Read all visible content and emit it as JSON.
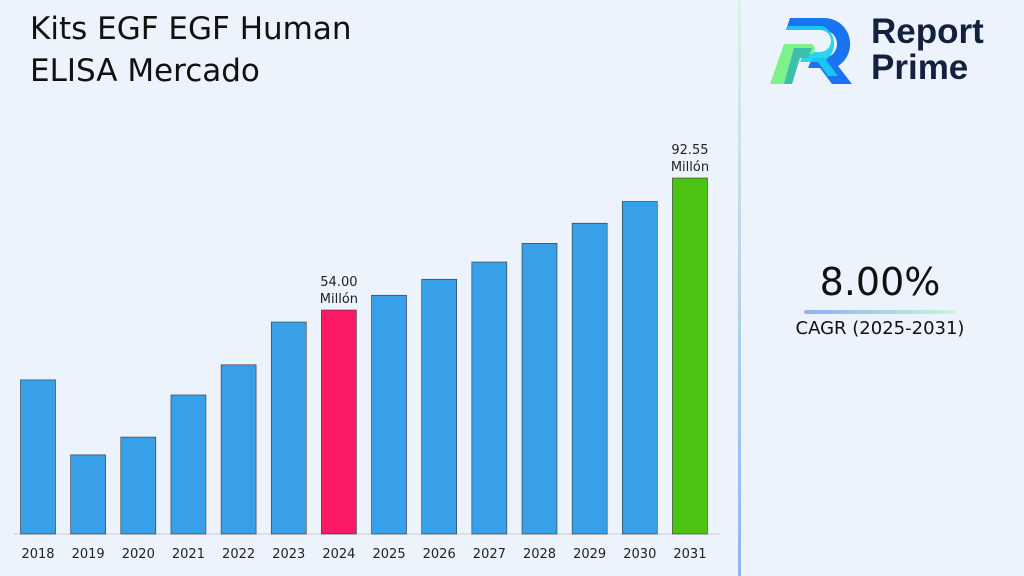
{
  "title": "Kits EGF EGF Human ELISA Mercado",
  "brand": {
    "name_line1": "Report",
    "name_line2": "Prime"
  },
  "cagr": {
    "value": "8.00%",
    "label": "CAGR (2025-2031)"
  },
  "colors": {
    "default_bar": "#38a0e8",
    "highlight_2024": "#fc1a64",
    "highlight_2031": "#4cc313"
  },
  "chart_data": {
    "type": "bar",
    "title": "Kits EGF EGF Human ELISA Mercado",
    "categories": [
      "2018",
      "2019",
      "2020",
      "2021",
      "2022",
      "2023",
      "2024",
      "2025",
      "2026",
      "2027",
      "2028",
      "2029",
      "2030",
      "2031"
    ],
    "values": [
      33.6,
      11.7,
      16.9,
      29.2,
      38.0,
      50.5,
      54.0,
      58.32,
      62.99,
      68.02,
      73.47,
      79.35,
      85.69,
      92.55
    ],
    "data_labels": {
      "2024": [
        "54.00",
        "Millón"
      ],
      "2031": [
        "92.55",
        "Millón"
      ]
    },
    "grid": false,
    "legend": "none"
  }
}
